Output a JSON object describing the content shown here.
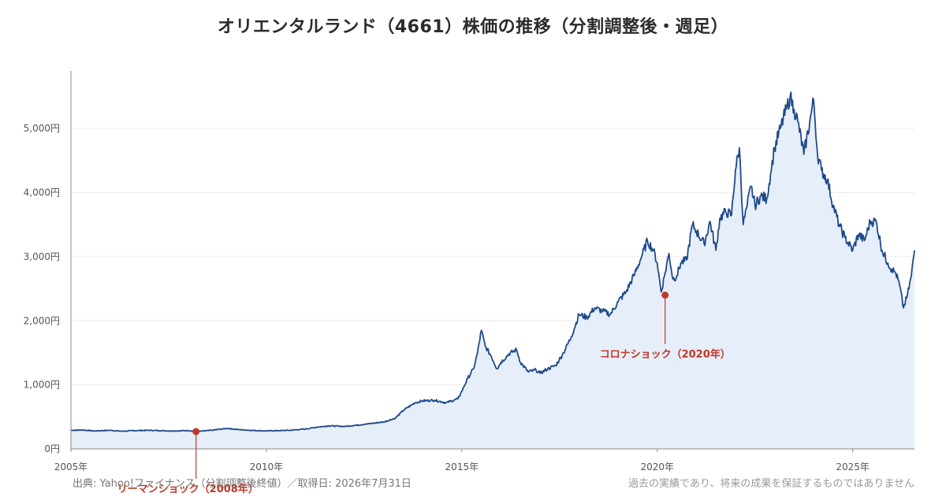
{
  "chart_data": {
    "type": "line",
    "title": "オリエンタルランド（4661）株価の推移（分割調整後・週足）",
    "xlabel": "",
    "ylabel": "",
    "xlim": [
      2005.0,
      2026.58
    ],
    "ylim": [
      0,
      5900
    ],
    "x_ticks": [
      2005,
      2010,
      2015,
      2020,
      2025
    ],
    "x_tick_labels": [
      "2005年",
      "2010年",
      "2015年",
      "2020年",
      "2025年"
    ],
    "y_ticks": [
      0,
      1000,
      2000,
      3000,
      4000,
      5000
    ],
    "y_tick_labels": [
      "0円",
      "1,000円",
      "2,000円",
      "3,000円",
      "4,000円",
      "5,000円"
    ],
    "grid": true,
    "area_fill": true,
    "colors": {
      "line": "#1f4a8a",
      "fill": "#e6eff9",
      "annotation": "#c0392b",
      "grid": "#ececec",
      "axis": "#888888"
    },
    "series": [
      {
        "x": [
          2005.0,
          2005.3,
          2005.6,
          2006.0,
          2006.3,
          2006.6,
          2007.0,
          2007.3,
          2007.6,
          2008.0,
          2008.3,
          2008.6,
          2009.0,
          2009.3,
          2009.6,
          2010.0,
          2010.3,
          2010.6,
          2011.0,
          2011.3,
          2011.6,
          2012.0,
          2012.3,
          2012.6,
          2013.0,
          2013.3,
          2013.5,
          2013.8,
          2014.0,
          2014.3,
          2014.6,
          2014.9,
          2015.0,
          2015.15,
          2015.3,
          2015.4,
          2015.5,
          2015.6,
          2015.75,
          2015.9,
          2016.0,
          2016.2,
          2016.4,
          2016.5,
          2016.7,
          2016.9,
          2017.0,
          2017.2,
          2017.4,
          2017.6,
          2017.8,
          2018.0,
          2018.2,
          2018.4,
          2018.6,
          2018.8,
          2019.0,
          2019.2,
          2019.4,
          2019.6,
          2019.75,
          2019.9,
          2020.0,
          2020.1,
          2020.2,
          2020.3,
          2020.4,
          2020.5,
          2020.6,
          2020.75,
          2020.9,
          2021.0,
          2021.2,
          2021.35,
          2021.5,
          2021.6,
          2021.75,
          2021.9,
          2022.0,
          2022.1,
          2022.2,
          2022.3,
          2022.4,
          2022.5,
          2022.65,
          2022.8,
          2022.9,
          2023.0,
          2023.15,
          2023.3,
          2023.4,
          2023.5,
          2023.6,
          2023.75,
          2023.9,
          2024.0,
          2024.1,
          2024.2,
          2024.35,
          2024.5,
          2024.65,
          2024.8,
          2025.0,
          2025.15,
          2025.3,
          2025.45,
          2025.6,
          2025.75,
          2025.9,
          2026.0,
          2026.1,
          2026.2,
          2026.3,
          2026.4,
          2026.5,
          2026.58
        ],
        "values": [
          290,
          295,
          280,
          290,
          275,
          285,
          290,
          285,
          280,
          285,
          275,
          290,
          320,
          300,
          290,
          280,
          285,
          290,
          310,
          340,
          360,
          350,
          370,
          390,
          420,
          480,
          600,
          720,
          750,
          760,
          720,
          780,
          900,
          1100,
          1250,
          1500,
          1850,
          1600,
          1450,
          1250,
          1350,
          1480,
          1550,
          1350,
          1200,
          1230,
          1180,
          1250,
          1300,
          1500,
          1750,
          2100,
          2050,
          2200,
          2150,
          2100,
          2300,
          2450,
          2700,
          3000,
          3250,
          3100,
          2900,
          2450,
          2750,
          3050,
          2650,
          2700,
          2900,
          2950,
          3500,
          3400,
          3200,
          3550,
          3100,
          3600,
          3700,
          3650,
          4350,
          4700,
          3500,
          3800,
          4100,
          3800,
          3950,
          3900,
          4300,
          4700,
          5000,
          5300,
          5500,
          5300,
          5100,
          4600,
          5100,
          5450,
          4600,
          4350,
          4200,
          3800,
          3500,
          3300,
          3100,
          3350,
          3250,
          3550,
          3550,
          3100,
          2900,
          2800,
          2750,
          2550,
          2200,
          2400,
          2700,
          3100
        ]
      }
    ],
    "annotations": [
      {
        "label": "リーマンショック（2008年）",
        "x": 2008.2,
        "y": 270
      },
      {
        "label": "コロナショック（2020年）",
        "x": 2020.2,
        "y": 2400
      }
    ]
  },
  "footer": {
    "source": "出典: Yahoo!ファイナンス（分割調整後終値）／取得日: 2026年7月31日",
    "note": "過去の実績であり、将来の成果を保証するものではありません"
  }
}
